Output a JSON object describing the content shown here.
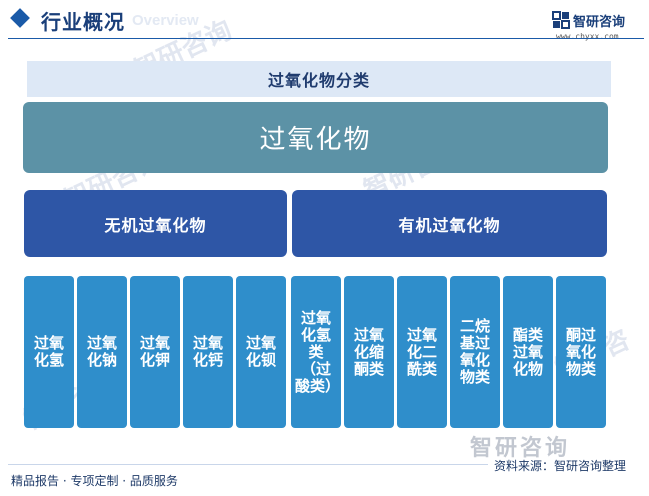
{
  "header": {
    "title": "行业概况",
    "subtitle_en": "Overview",
    "logo_text": "智研咨询",
    "logo_url": "www.chyxx.com"
  },
  "diagram": {
    "category_title": "过氧化物分类",
    "root": "过氧化物",
    "groups": {
      "inorganic": {
        "label": "无机过氧化物",
        "items": [
          "过氧化氢",
          "过氧化钠",
          "过氧化钾",
          "过氧化钙",
          "过氧化钡"
        ]
      },
      "organic": {
        "label": "有机过氧化物",
        "items": [
          "过氧化氢类（过酸类）",
          "过氧化缩酮类",
          "过氧化二酰类",
          "二烷基过氧化物类",
          "酯类过氧化物",
          "酮过氧化物类"
        ]
      }
    }
  },
  "footer": {
    "left": "精品报告 · 专项定制 · 品质服务",
    "source": "资料来源：智研咨询整理"
  },
  "watermark": {
    "text": "智研咨询"
  },
  "colors": {
    "brand": "#1a5aa8",
    "root": "#5c92a6",
    "group": "#2e56a6",
    "leaf": "#2f8ecb"
  }
}
